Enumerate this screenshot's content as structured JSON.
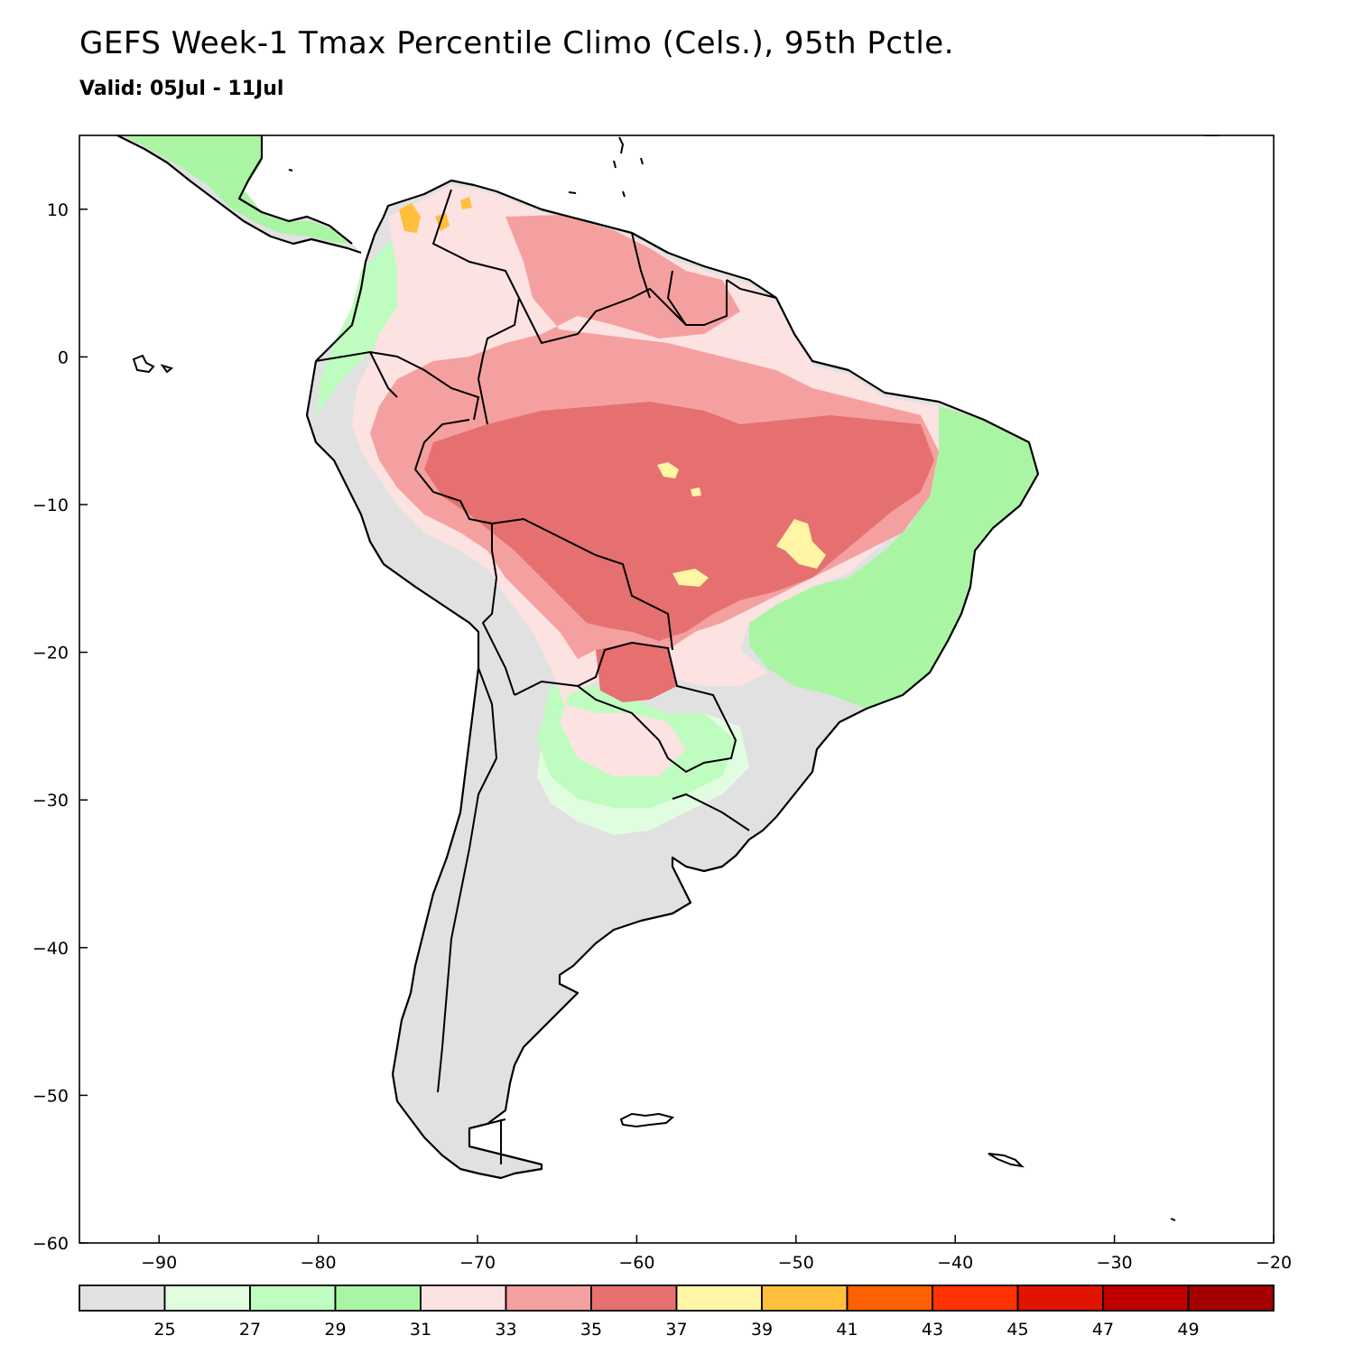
{
  "title": "GEFS Week-1 Tmax Percentile Climo (Cels.), 95th Pctle.",
  "subtitle": "Valid: 05Jul - 11Jul",
  "map": {
    "region": "South America",
    "lon_range": [
      -95,
      -20
    ],
    "lat_range": [
      -60,
      15
    ],
    "x_ticks": [
      "-90",
      "-80",
      "-70",
      "-60",
      "-50",
      "-40",
      "-30",
      "-20"
    ],
    "y_ticks": [
      "10",
      "0",
      "-10",
      "-20",
      "-30",
      "-40",
      "-50",
      "-60"
    ]
  },
  "legend": {
    "labels": [
      "25",
      "27",
      "29",
      "31",
      "33",
      "35",
      "37",
      "39",
      "41",
      "43",
      "45",
      "47",
      "49"
    ],
    "colors": [
      "#e1e1e1",
      "#e0fde0",
      "#bffcbf",
      "#aaf5a4",
      "#fde2e2",
      "#f5a0a0",
      "#e67070",
      "#fff5a5",
      "#ffbf3c",
      "#ff6000",
      "#ff3200",
      "#e11400",
      "#c00000",
      "#a50000"
    ]
  }
}
